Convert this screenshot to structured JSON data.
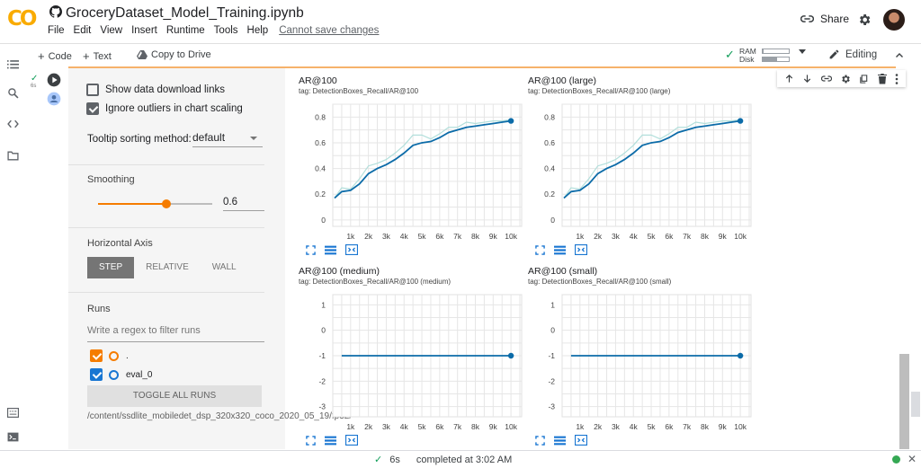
{
  "app": {
    "logo_text": "CO",
    "notebook_title": "GroceryDataset_Model_Training.ipynb",
    "menu": [
      "File",
      "Edit",
      "View",
      "Insert",
      "Runtime",
      "Tools",
      "Help"
    ],
    "unsaved_notice": "Cannot save changes",
    "share_label": "Share"
  },
  "toolbar": {
    "code_label": "Code",
    "text_label": "Text",
    "copy_label": "Copy to Drive",
    "ram_label": "RAM",
    "disk_label": "Disk",
    "ram_level": 0.05,
    "disk_level": 0.55,
    "editing_label": "Editing"
  },
  "cell": {
    "exec_time": "6s"
  },
  "panel": {
    "show_download_label": "Show data download links",
    "show_download_checked": false,
    "ignore_outliers_label": "Ignore outliers in chart scaling",
    "ignore_outliers_checked": true,
    "tooltip_label": "Tooltip sorting method:",
    "tooltip_value": "default",
    "smoothing_title": "Smoothing",
    "smoothing_value": "0.6",
    "smoothing_fraction": 0.6,
    "horizontal_axis_title": "Horizontal Axis",
    "axis_options": [
      "STEP",
      "RELATIVE",
      "WALL"
    ],
    "axis_selected": "STEP",
    "runs_title": "Runs",
    "filter_placeholder": "Write a regex to filter runs",
    "runs": [
      {
        "name": ".",
        "color": "#f57c00",
        "checked": true
      },
      {
        "name": "eval_0",
        "color": "#1976d2",
        "checked": true
      }
    ],
    "toggle_all_label": "TOGGLE ALL RUNS",
    "run_path": "/content/ssdlite_mobiledet_dsp_320x320_coco_2020_05_19/fp32/"
  },
  "charts": {
    "x_ticks": [
      "1k",
      "2k",
      "3k",
      "4k",
      "5k",
      "6k",
      "7k",
      "8k",
      "9k",
      "10k"
    ],
    "series_color": "#0b6ba8",
    "raw_color": "#b2dfdb"
  },
  "chart_data": [
    {
      "type": "line",
      "title": "AR@100",
      "subtitle": "tag: DetectionBoxes_Recall/AR@100",
      "x": [
        100,
        500,
        1000,
        1500,
        2000,
        2500,
        3000,
        3500,
        4000,
        4500,
        5000,
        5500,
        6000,
        6500,
        7000,
        7500,
        8000,
        8500,
        9000,
        9500,
        10000
      ],
      "series": [
        {
          "values": [
            0.17,
            0.22,
            0.23,
            0.28,
            0.36,
            0.4,
            0.43,
            0.47,
            0.52,
            0.58,
            0.6,
            0.61,
            0.64,
            0.68,
            0.7,
            0.72,
            0.73,
            0.74,
            0.75,
            0.76,
            0.77
          ]
        }
      ],
      "raw_values": [
        0.17,
        0.25,
        0.24,
        0.32,
        0.42,
        0.44,
        0.47,
        0.52,
        0.58,
        0.66,
        0.66,
        0.63,
        0.67,
        0.72,
        0.72,
        0.76,
        0.75,
        0.76,
        0.77,
        0.77,
        0.78
      ],
      "yticks": [
        0,
        0.2,
        0.4,
        0.6,
        0.8
      ],
      "ylim": [
        -0.05,
        0.9
      ],
      "xlim": [
        0,
        10600
      ],
      "grid": true
    },
    {
      "type": "line",
      "title": "AR@100 (large)",
      "subtitle": "tag: DetectionBoxes_Recall/AR@100 (large)",
      "x": [
        100,
        500,
        1000,
        1500,
        2000,
        2500,
        3000,
        3500,
        4000,
        4500,
        5000,
        5500,
        6000,
        6500,
        7000,
        7500,
        8000,
        8500,
        9000,
        9500,
        10000
      ],
      "series": [
        {
          "values": [
            0.17,
            0.22,
            0.23,
            0.28,
            0.36,
            0.4,
            0.43,
            0.47,
            0.52,
            0.58,
            0.6,
            0.61,
            0.64,
            0.68,
            0.7,
            0.72,
            0.73,
            0.74,
            0.75,
            0.76,
            0.77
          ]
        }
      ],
      "raw_values": [
        0.17,
        0.25,
        0.24,
        0.32,
        0.42,
        0.44,
        0.47,
        0.52,
        0.58,
        0.66,
        0.66,
        0.63,
        0.67,
        0.72,
        0.72,
        0.76,
        0.75,
        0.76,
        0.77,
        0.77,
        0.78
      ],
      "yticks": [
        0,
        0.2,
        0.4,
        0.6,
        0.8
      ],
      "ylim": [
        -0.05,
        0.9
      ],
      "xlim": [
        0,
        10600
      ],
      "grid": true
    },
    {
      "type": "line",
      "title": "AR@100 (medium)",
      "subtitle": "tag: DetectionBoxes_Recall/AR@100 (medium)",
      "x": [
        500,
        10000
      ],
      "series": [
        {
          "values": [
            -1,
            -1
          ]
        }
      ],
      "yticks": [
        -3,
        -2,
        -1,
        0,
        1
      ],
      "ylim": [
        -3.4,
        1.4
      ],
      "xlim": [
        0,
        10600
      ],
      "grid": true
    },
    {
      "type": "line",
      "title": "AR@100 (small)",
      "subtitle": "tag: DetectionBoxes_Recall/AR@100 (small)",
      "x": [
        500,
        10000
      ],
      "series": [
        {
          "values": [
            -1,
            -1
          ]
        }
      ],
      "yticks": [
        -3,
        -2,
        -1,
        0,
        1
      ],
      "ylim": [
        -3.4,
        1.4
      ],
      "xlim": [
        0,
        10600
      ],
      "grid": true
    }
  ],
  "status": {
    "duration": "6s",
    "message": "completed at 3:02 AM"
  }
}
